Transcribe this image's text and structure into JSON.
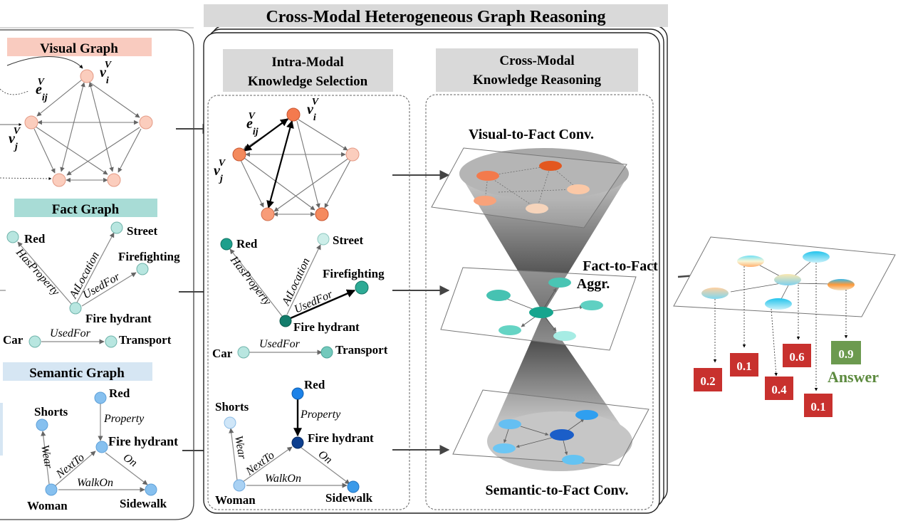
{
  "title": "Cross-Modal Heterogeneous Graph Reasoning",
  "left": {
    "visual_graph": "Visual Graph",
    "fact_graph": "Fact Graph",
    "semantic_graph": "Semantic Graph",
    "v_i": "v",
    "v_i_sub": "i",
    "v_j": "v",
    "v_j_sub": "j",
    "e_ij": "e",
    "e_ij_sub": "ij",
    "sup_v": "V",
    "fact_nodes": {
      "red": "Red",
      "street": "Street",
      "firefighting": "Firefighting",
      "fire_hydrant": "Fire hydrant",
      "car": "Car",
      "transport": "Transport"
    },
    "fact_edges": {
      "has_property": "HasProperty",
      "at_location": "AtLocation",
      "used_for": "UsedFor",
      "used_for2": "UsedFor"
    },
    "sem_nodes": {
      "red": "Red",
      "shorts": "Shorts",
      "fire_hydrant": "Fire hydrant",
      "woman": "Woman",
      "sidewalk": "Sidewalk"
    },
    "sem_edges": {
      "property": "Property",
      "wear": "Wear",
      "next_to": "NextTo",
      "on": "On",
      "walk_on": "WalkOn"
    }
  },
  "intra": {
    "header_line1": "Intra-Modal",
    "header_line2": "Knowledge Selection",
    "fact_nodes": {
      "red": "Red",
      "street": "Street",
      "firefighting": "Firefighting",
      "fire_hydrant": "Fire hydrant",
      "car": "Car",
      "transport": "Transport"
    },
    "fact_edges": {
      "has_property": "HasProperty",
      "at_location": "AtLocation",
      "used_for": "UsedFor",
      "used_for2": "UsedFor"
    },
    "sem_nodes": {
      "red": "Red",
      "shorts": "Shorts",
      "fire_hydrant": "Fire hydrant",
      "woman": "Woman",
      "sidewalk": "Sidewalk"
    },
    "sem_edges": {
      "property": "Property",
      "wear": "Wear",
      "next_to": "NextTo",
      "on": "On",
      "walk_on": "WalkOn"
    }
  },
  "cross": {
    "header_line1": "Cross-Modal",
    "header_line2": "Knowledge Reasoning",
    "visual_to_fact": "Visual-to-Fact Conv.",
    "fact_to_fact_1": "Fact-to-Fact",
    "fact_to_fact_2": "Aggr.",
    "semantic_to_fact": "Semantic-to-Fact Conv."
  },
  "output": {
    "scores": [
      "0.2",
      "0.1",
      "0.4",
      "0.6",
      "0.1",
      "0.9"
    ],
    "answer": "Answer"
  },
  "colors": {
    "visual_label_bg": "#f9cbbf",
    "fact_label_bg": "#a8dcd6",
    "semantic_label_bg": "#d6e6f3",
    "score_red": "#c8312e",
    "answer_green": "#6c9a4f",
    "header_bg": "#d9d9d9"
  }
}
